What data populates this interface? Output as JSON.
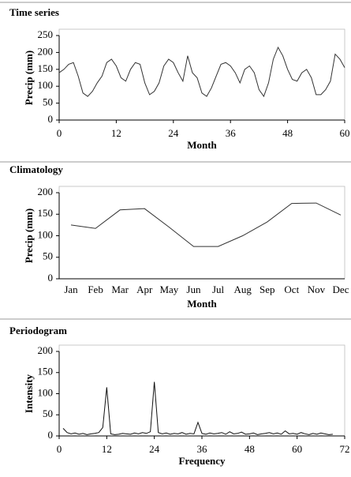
{
  "chart_data": [
    {
      "type": "line",
      "title": "Time series",
      "xlabel": "Month",
      "ylabel": "Precip (mm)",
      "x": [
        0,
        1,
        2,
        3,
        4,
        5,
        6,
        7,
        8,
        9,
        10,
        11,
        12,
        13,
        14,
        15,
        16,
        17,
        18,
        19,
        20,
        21,
        22,
        23,
        24,
        25,
        26,
        27,
        28,
        29,
        30,
        31,
        32,
        33,
        34,
        35,
        36,
        37,
        38,
        39,
        40,
        41,
        42,
        43,
        44,
        45,
        46,
        47,
        48,
        49,
        50,
        51,
        52,
        53,
        54,
        55,
        56,
        57,
        58,
        59,
        60
      ],
      "values": [
        140,
        150,
        165,
        170,
        130,
        80,
        70,
        85,
        110,
        130,
        170,
        180,
        160,
        125,
        115,
        150,
        170,
        165,
        110,
        75,
        85,
        110,
        160,
        180,
        170,
        140,
        115,
        190,
        140,
        125,
        80,
        70,
        95,
        130,
        165,
        170,
        160,
        140,
        110,
        150,
        160,
        140,
        90,
        70,
        110,
        180,
        215,
        190,
        150,
        120,
        115,
        140,
        150,
        125,
        75,
        75,
        90,
        115,
        195,
        180,
        155
      ],
      "color": "#333333",
      "xlim": [
        0,
        60
      ],
      "xticks": [
        0,
        12,
        24,
        36,
        48,
        60
      ],
      "ylim": [
        0,
        250
      ],
      "yticks": [
        0,
        50,
        100,
        150,
        200,
        250
      ]
    },
    {
      "type": "line",
      "title": "Climatology",
      "xlabel": "Month",
      "ylabel": "Precip (mm)",
      "categories": [
        "Jan",
        "Feb",
        "Mar",
        "Apr",
        "May",
        "Jun",
        "Jul",
        "Aug",
        "Sep",
        "Oct",
        "Nov",
        "Dec"
      ],
      "values": [
        125,
        117,
        160,
        163,
        120,
        75,
        75,
        100,
        132,
        175,
        176,
        148
      ],
      "color": "#333333",
      "ylim": [
        0,
        200
      ],
      "yticks": [
        0,
        50,
        100,
        150,
        200
      ]
    },
    {
      "type": "line",
      "title": "Periodogram",
      "xlabel": "Frequency",
      "ylabel": "Intensity",
      "x": [
        1,
        2,
        3,
        4,
        5,
        6,
        7,
        8,
        9,
        10,
        11,
        12,
        13,
        14,
        15,
        16,
        17,
        18,
        19,
        20,
        21,
        22,
        23,
        24,
        25,
        26,
        27,
        28,
        29,
        30,
        31,
        32,
        33,
        34,
        35,
        36,
        37,
        38,
        39,
        40,
        41,
        42,
        43,
        44,
        45,
        46,
        47,
        48,
        49,
        50,
        51,
        52,
        53,
        54,
        55,
        56,
        57,
        58,
        59,
        60,
        61,
        62,
        63,
        64,
        65,
        66,
        67,
        68,
        69
      ],
      "values": [
        18,
        8,
        5,
        7,
        4,
        6,
        3,
        5,
        6,
        8,
        20,
        115,
        5,
        3,
        4,
        6,
        5,
        4,
        7,
        5,
        8,
        6,
        10,
        128,
        8,
        5,
        7,
        4,
        6,
        5,
        8,
        4,
        6,
        5,
        32,
        6,
        4,
        7,
        5,
        6,
        8,
        4,
        10,
        5,
        6,
        9,
        4,
        5,
        7,
        3,
        5,
        6,
        8,
        5,
        7,
        4,
        12,
        5,
        6,
        4,
        8,
        5,
        3,
        6,
        4,
        7,
        5,
        3,
        4
      ],
      "color": "#111111",
      "xlim": [
        0,
        72
      ],
      "xticks": [
        0,
        12,
        24,
        36,
        48,
        60,
        72
      ],
      "ylim": [
        0,
        200
      ],
      "yticks": [
        0,
        50,
        100,
        150,
        200
      ]
    }
  ]
}
